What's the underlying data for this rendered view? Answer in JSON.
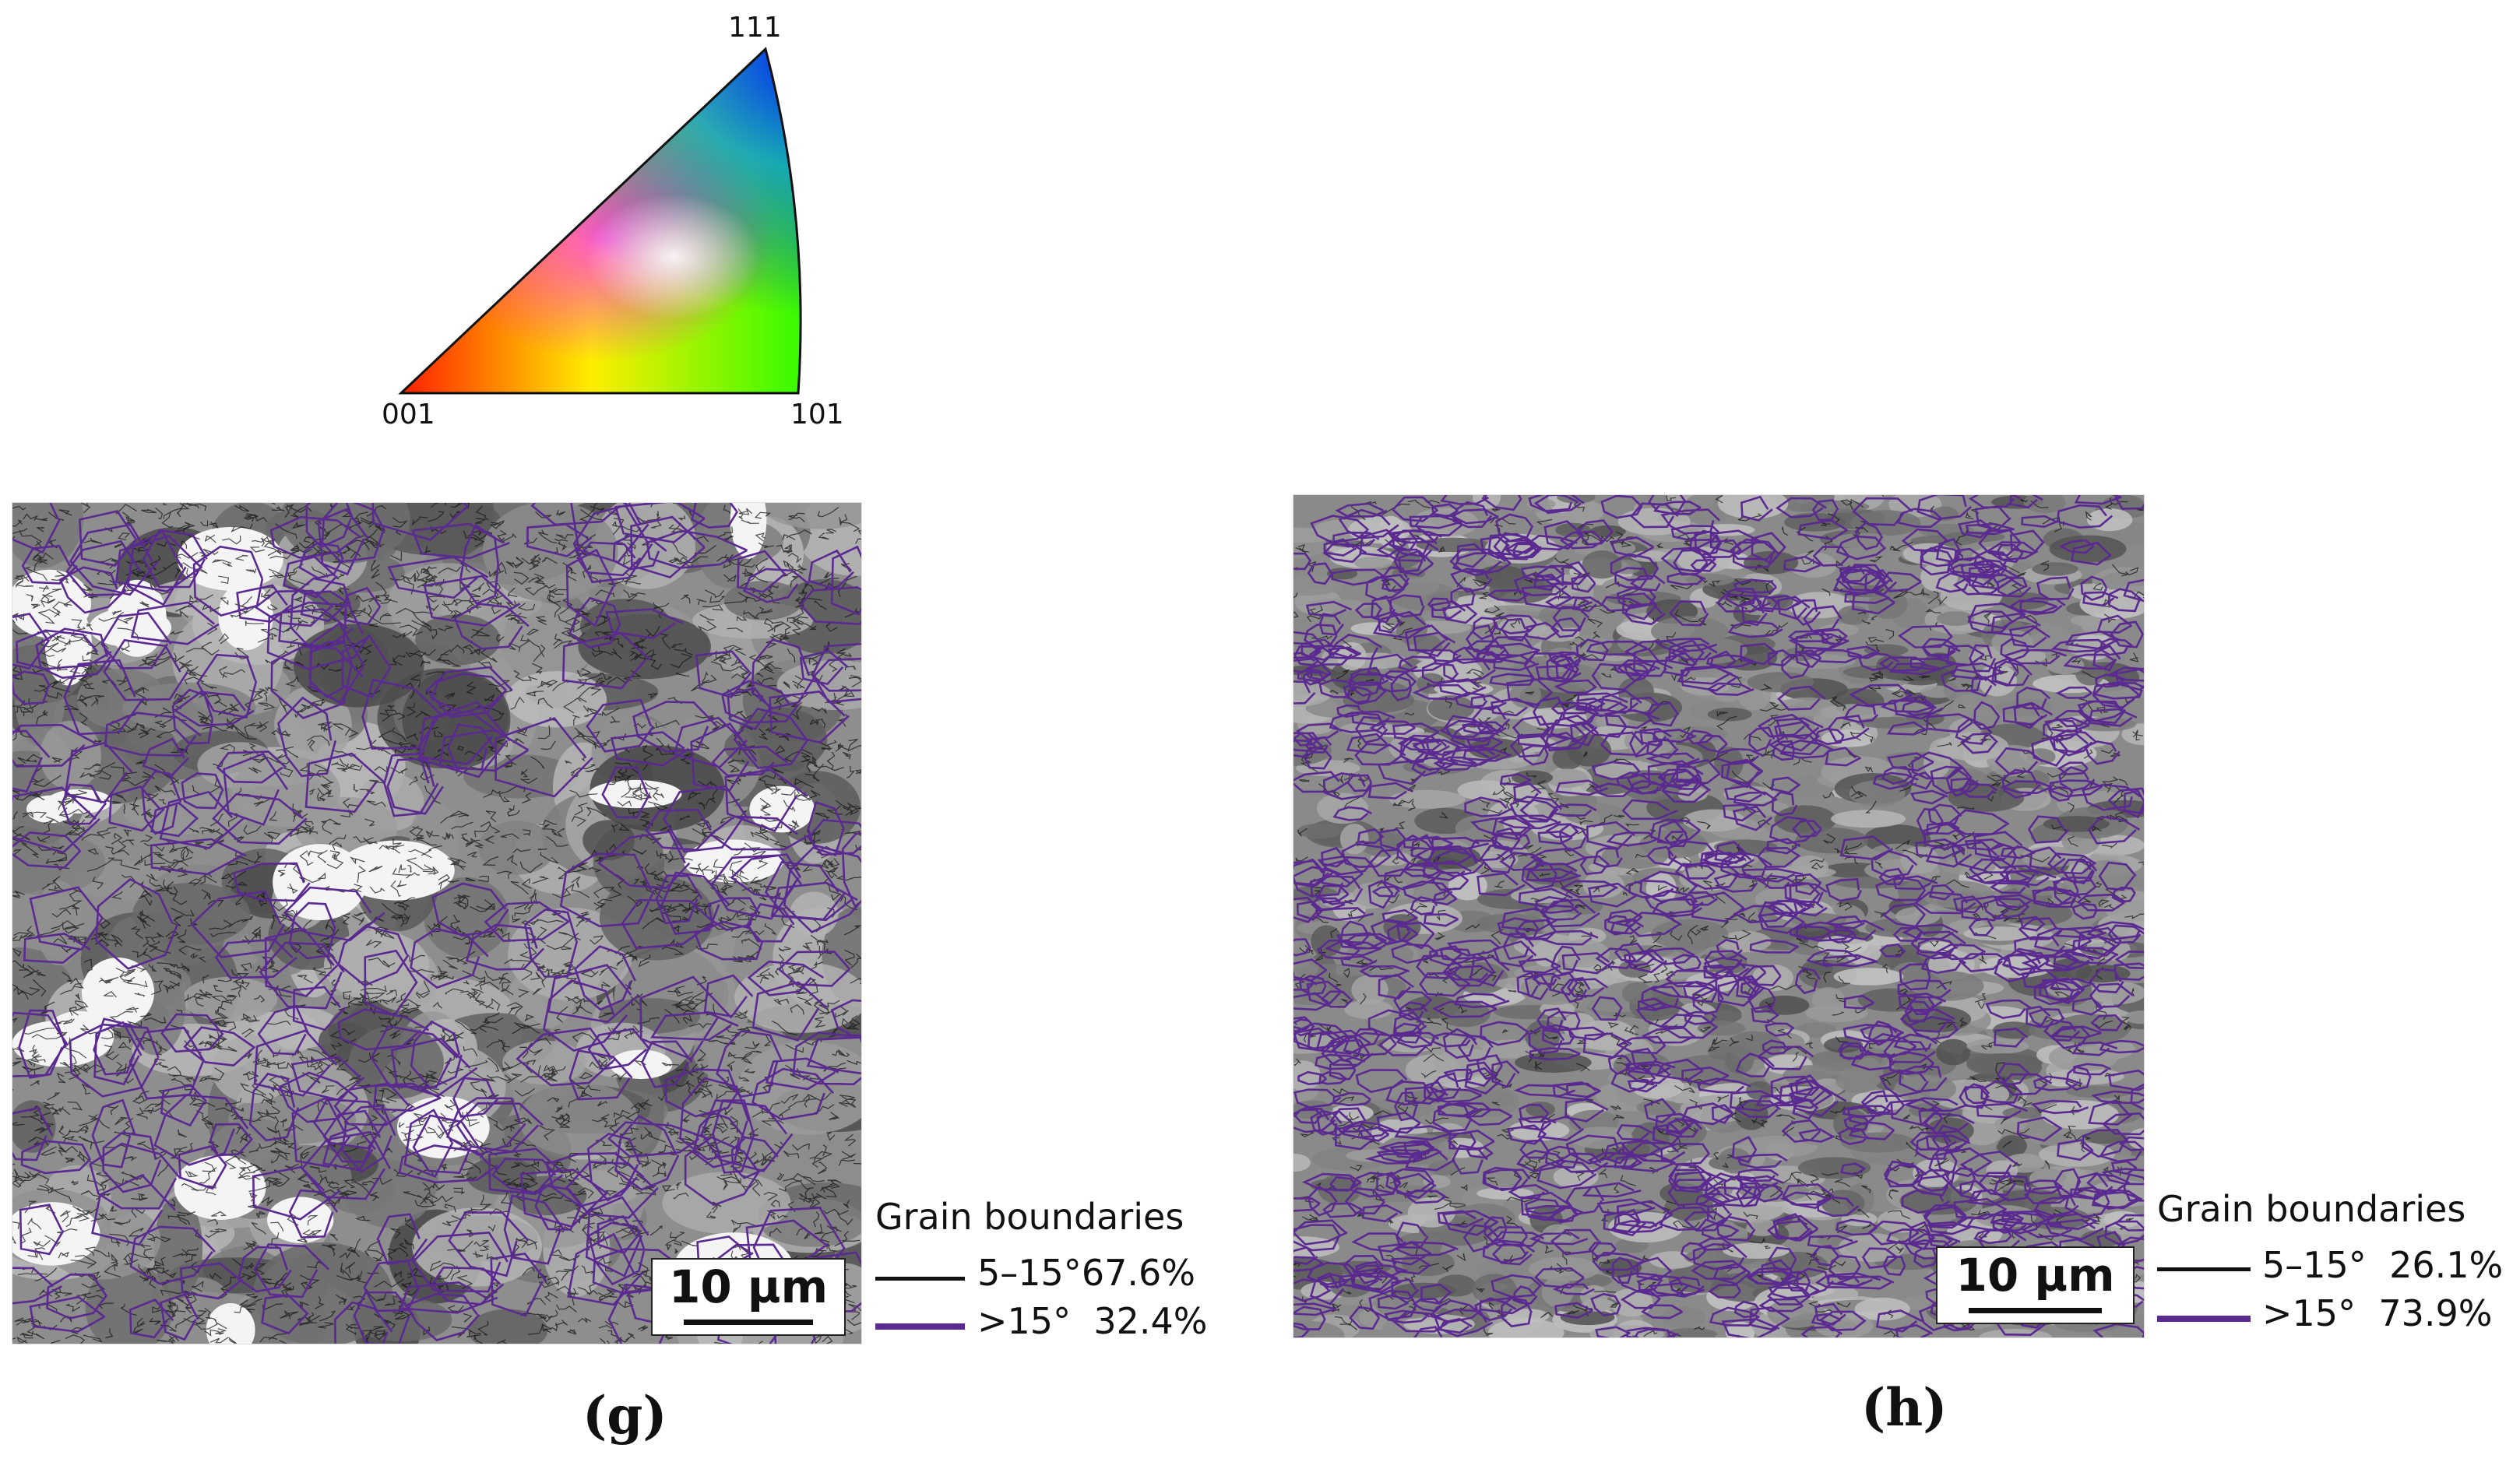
{
  "ipf": {
    "corner_top": "111",
    "corner_left": "001",
    "corner_right": "101"
  },
  "panels": [
    {
      "id": "g",
      "label": "(g)",
      "scale_bar": "10 µm",
      "legend": {
        "title": "Grain boundaries",
        "rows": [
          {
            "range": "5–15°",
            "fraction": "67.6%",
            "color": "#111111"
          },
          {
            "range": ">15°",
            "fraction": "32.4%",
            "color": "#5b2a91"
          }
        ]
      }
    },
    {
      "id": "h",
      "label": "(h)",
      "scale_bar": "10 µm",
      "legend": {
        "title": "Grain boundaries",
        "rows": [
          {
            "range": "5–15°",
            "fraction": "26.1%",
            "color": "#111111"
          },
          {
            "range": ">15°",
            "fraction": "73.9%",
            "color": "#5b2a91"
          }
        ]
      }
    }
  ]
}
